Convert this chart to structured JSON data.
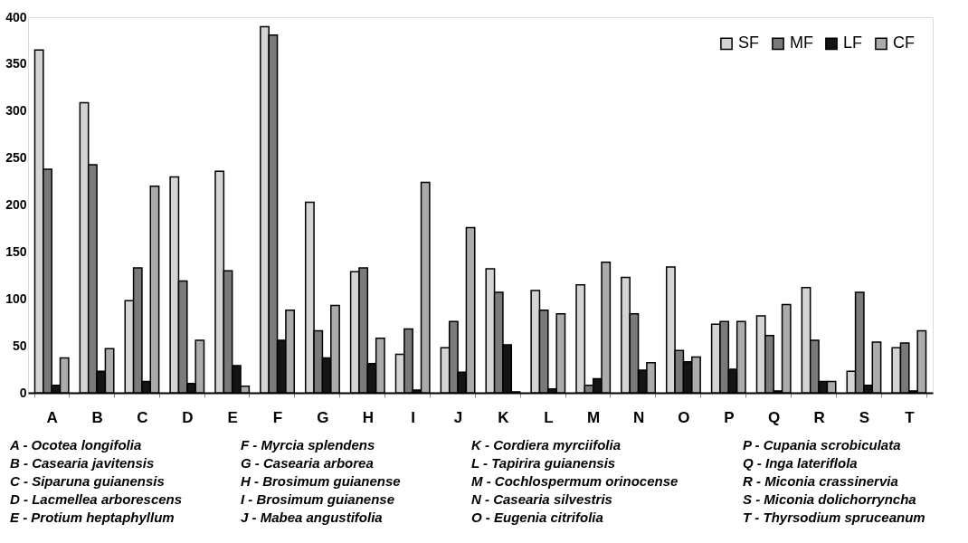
{
  "chart_data": {
    "type": "bar",
    "categories": [
      "A",
      "B",
      "C",
      "D",
      "E",
      "F",
      "G",
      "H",
      "I",
      "J",
      "K",
      "L",
      "M",
      "N",
      "O",
      "P",
      "Q",
      "R",
      "S",
      "T"
    ],
    "series": [
      {
        "name": "SF",
        "color": "#d4d4d4",
        "values": [
          365,
          309,
          98,
          230,
          236,
          390,
          203,
          129,
          41,
          48,
          132,
          109,
          115,
          123,
          134,
          73,
          82,
          112,
          23,
          48
        ]
      },
      {
        "name": "MF",
        "color": "#7a7a7a",
        "values": [
          238,
          243,
          133,
          119,
          130,
          381,
          66,
          133,
          68,
          76,
          107,
          88,
          8,
          84,
          45,
          76,
          61,
          56,
          107,
          53
        ]
      },
      {
        "name": "LF",
        "color": "#141414",
        "values": [
          8,
          23,
          12,
          10,
          29,
          56,
          37,
          31,
          3,
          22,
          51,
          4,
          15,
          24,
          33,
          25,
          2,
          12,
          8,
          2
        ]
      },
      {
        "name": "CF",
        "color": "#ababab",
        "values": [
          37,
          47,
          220,
          56,
          7,
          88,
          93,
          58,
          224,
          176,
          1,
          84,
          139,
          32,
          38,
          76,
          94,
          12,
          54,
          66
        ]
      }
    ],
    "ylim": [
      0,
      400
    ],
    "yticks": [
      0,
      50,
      100,
      150,
      200,
      250,
      300,
      350,
      400
    ],
    "grid": false,
    "legend": "top right",
    "annotations": [
      "A - Ocotea longifolia",
      "B - Casearia javitensis",
      "C - Siparuna guianensis",
      "D - Lacmellea arborescens",
      "E - Protium heptaphyllum",
      "F - Myrcia splendens",
      "G - Casearia arborea",
      "H - Brosimum guianense",
      "I - Brosimum guianense",
      "J - Mabea angustifolia",
      "K - Cordiera myrciifolia",
      "L - Tapirira guianensis",
      "M - Cochlospermum orinocense",
      "N - Casearia silvestris",
      "O - Eugenia citrifolia",
      "P - Cupania scrobiculata",
      "Q - Inga lateriflola",
      "R - Miconia crassinervia",
      "S - Miconia dolichorryncha",
      "T - Thyrsodium spruceanum"
    ]
  }
}
